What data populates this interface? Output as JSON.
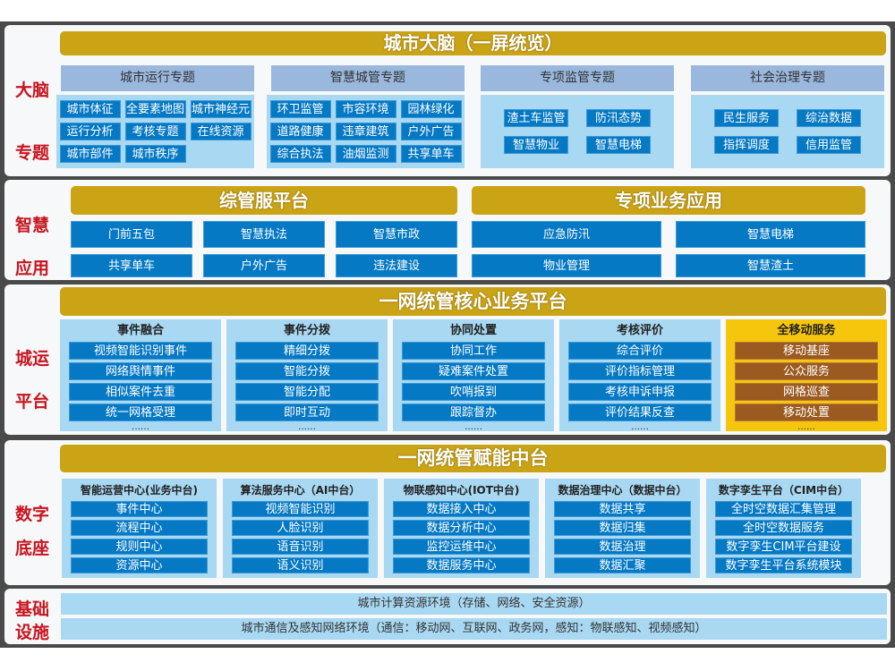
{
  "brain": {
    "side": [
      "大脑",
      "专题"
    ],
    "title": "城市大脑（一屏统览）",
    "categories": [
      {
        "name": "城市运行专题",
        "items": [
          "城市体征",
          "全要素地图",
          "城市神经元",
          "运行分析",
          "考核专题",
          "在线资源",
          "城市部件",
          "城市秩序"
        ]
      },
      {
        "name": "智慧城管专题",
        "items": [
          "环卫监管",
          "市容环境",
          "园林绿化",
          "道路健康",
          "违章建筑",
          "户外广告",
          "综合执法",
          "油烟监测",
          "共享单车"
        ]
      },
      {
        "name": "专项监管专题",
        "items": [
          "渣土车监管",
          "防汛态势",
          "智慧物业",
          "智慧电梯"
        ]
      },
      {
        "name": "社会治理专题",
        "items": [
          "民生服务",
          "综治数据",
          "指挥调度",
          "信用监管"
        ]
      }
    ]
  },
  "apps": {
    "side": [
      "智慧",
      "应用"
    ],
    "left": {
      "title": "综管服平台",
      "items": [
        "门前五包",
        "智慧执法",
        "智慧市政",
        "共享单车",
        "户外广告",
        "违法建设"
      ]
    },
    "right": {
      "title": "专项业务应用",
      "items": [
        "应急防汛",
        "智慧电梯",
        "物业管理",
        "智慧渣土"
      ]
    }
  },
  "platform": {
    "side": [
      "城运",
      "平台"
    ],
    "title": "一网统管核心业务平台",
    "more": "……",
    "columns": [
      {
        "name": "事件融合",
        "items": [
          "视频智能识别事件",
          "网络舆情事件",
          "相似案件去重",
          "统一网格受理"
        ]
      },
      {
        "name": "事件分拨",
        "items": [
          "精细分拨",
          "智能分拨",
          "智能分配",
          "即时互动"
        ]
      },
      {
        "name": "协同处置",
        "items": [
          "协同工作",
          "疑难案件处置",
          "吹哨报到",
          "跟踪督办"
        ]
      },
      {
        "name": "考核评价",
        "items": [
          "综合评价",
          "评价指标管理",
          "考核申诉申报",
          "评价结果反查"
        ]
      },
      {
        "name": "全移动服务",
        "items": [
          "移动基座",
          "公众服务",
          "网格巡查",
          "移动处置"
        ]
      }
    ],
    "colors": {
      "blue": "#0679c4",
      "brown": "#9a5a20",
      "yellow": "#f5c60c"
    }
  },
  "base": {
    "side": [
      "数字",
      "底座"
    ],
    "title": "一网统管赋能中台",
    "columns": [
      {
        "name": "智能运营中心(业务中台)",
        "items": [
          "事件中心",
          "流程中心",
          "规则中心",
          "资源中心"
        ]
      },
      {
        "name": "算法服务中心（AI中台）",
        "items": [
          "视频智能识别",
          "人脸识别",
          "语音识别",
          "语义识别"
        ]
      },
      {
        "name": "物联感知中心(IOT中台)",
        "items": [
          "数据接入中心",
          "数据分析中心",
          "监控运维中心",
          "数据服务中心"
        ]
      },
      {
        "name": "数据治理中心（数据中台）",
        "items": [
          "数据共享",
          "数据归集",
          "数据治理",
          "数据汇聚"
        ]
      },
      {
        "name": "数字孪生平台（CIM中台）",
        "items": [
          "全时空数据汇集管理",
          "全时空数据服务",
          "数字孪生CIM平台建设",
          "数字孪生平台系统模块"
        ]
      }
    ]
  },
  "infra": {
    "side": [
      "基础",
      "设施"
    ],
    "rows": [
      "城市计算资源环境（存储、网络、安全资源）",
      "城市通信及感知网络环境（通信：移动网、互联网、政务网，感知：物联感知、视频感知）"
    ]
  },
  "colors": {
    "gold": "#cba416",
    "side_label": "#c8141e",
    "light_blue": "#a8d8f2",
    "header_blue": "#9ab8de"
  }
}
